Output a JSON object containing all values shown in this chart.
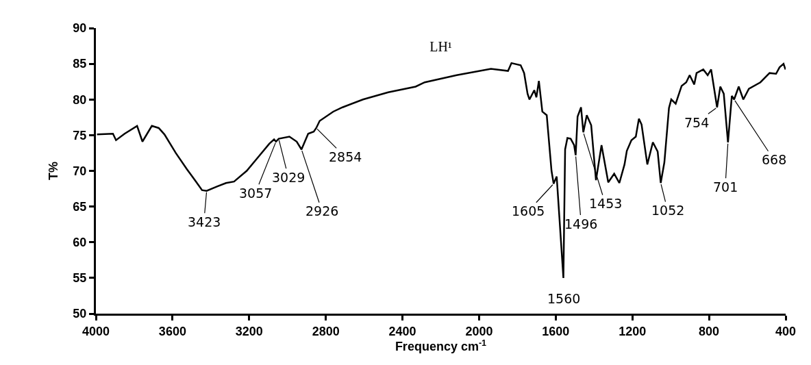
{
  "chart_data": {
    "type": "line",
    "title": "LH¹",
    "xlabel": "Frequency cm$^{-1}$",
    "ylabel": "T%",
    "xlim": [
      4000,
      400
    ],
    "xticks": [
      4000,
      3600,
      3200,
      2800,
      2400,
      2000,
      1600,
      1200,
      800,
      400
    ],
    "ylim": [
      50,
      90
    ],
    "yticks": [
      50,
      55,
      60,
      65,
      70,
      75,
      80,
      85,
      90
    ],
    "grid": false,
    "marker": "none",
    "line_style": "solid",
    "x": [
      3994,
      3911,
      3895,
      3850,
      3785,
      3757,
      3708,
      3672,
      3642,
      3583,
      3524,
      3475,
      3446,
      3422,
      3368,
      3321,
      3279,
      3213,
      3154,
      3095,
      3070,
      3060,
      3046,
      2990,
      2952,
      2927,
      2892,
      2863,
      2850,
      2832,
      2761,
      2713,
      2606,
      2474,
      2331,
      2284,
      2117,
      1938,
      1849,
      1831,
      1783,
      1765,
      1747,
      1737,
      1712,
      1701,
      1688,
      1670,
      1647,
      1622,
      1611,
      1595,
      1560,
      1551,
      1539,
      1522,
      1504,
      1496,
      1486,
      1468,
      1456,
      1438,
      1415,
      1390,
      1361,
      1326,
      1295,
      1268,
      1241,
      1229,
      1205,
      1182,
      1166,
      1152,
      1122,
      1093,
      1068,
      1052,
      1033,
      1009,
      997,
      974,
      943,
      919,
      901,
      877,
      865,
      830,
      807,
      789,
      758,
      741,
      723,
      701,
      681,
      669,
      645,
      621,
      592,
      532,
      484,
      450,
      432,
      411,
      401
    ],
    "series": [
      {
        "color": "#000000",
        "values": [
          75.1,
          75.2,
          74.3,
          75.2,
          76.3,
          74.1,
          76.3,
          76.0,
          75.1,
          72.5,
          70.2,
          68.4,
          67.3,
          67.2,
          67.8,
          68.3,
          68.5,
          70.0,
          71.9,
          73.8,
          74.4,
          74.1,
          74.5,
          74.8,
          74.1,
          73.0,
          75.2,
          75.5,
          76.0,
          77.0,
          78.3,
          78.9,
          80.0,
          81.0,
          81.8,
          82.4,
          83.4,
          84.3,
          84.0,
          85.1,
          84.8,
          83.7,
          80.8,
          80.0,
          81.3,
          80.3,
          82.6,
          78.3,
          77.8,
          70.0,
          68.2,
          69.2,
          55.0,
          73.0,
          74.6,
          74.5,
          73.6,
          72.2,
          77.6,
          78.9,
          75.4,
          77.8,
          76.4,
          68.7,
          73.6,
          68.4,
          69.6,
          68.3,
          70.9,
          72.8,
          74.3,
          74.8,
          77.3,
          76.5,
          70.9,
          74.0,
          72.7,
          68.3,
          71.2,
          78.8,
          80.0,
          79.4,
          81.9,
          82.4,
          83.4,
          82.1,
          83.7,
          84.2,
          83.4,
          84.2,
          78.9,
          81.8,
          80.8,
          74.0,
          80.5,
          80.0,
          81.8,
          80.0,
          81.5,
          82.4,
          83.7,
          83.6,
          84.5,
          85.0,
          84.2
        ]
      }
    ],
    "annotations": [
      {
        "text": "3423",
        "x": 3422,
        "y": 67.2
      },
      {
        "text": "3057",
        "x": 3060,
        "y": 74.1
      },
      {
        "text": "3029",
        "x": 3046,
        "y": 74.5
      },
      {
        "text": "2926",
        "x": 2927,
        "y": 73.0
      },
      {
        "text": "2854",
        "x": 2850,
        "y": 76.0
      },
      {
        "text": "1605",
        "x": 1611,
        "y": 68.2
      },
      {
        "text": "1560",
        "x": 1560,
        "y": 55.0
      },
      {
        "text": "1496",
        "x": 1496,
        "y": 72.2
      },
      {
        "text": "1453",
        "x": 1456,
        "y": 75.4
      },
      {
        "text": "1052",
        "x": 1052,
        "y": 68.3
      },
      {
        "text": "754",
        "x": 758,
        "y": 78.9
      },
      {
        "text": "701",
        "x": 701,
        "y": 74.0
      },
      {
        "text": "668",
        "x": 669,
        "y": 80.0
      }
    ]
  }
}
